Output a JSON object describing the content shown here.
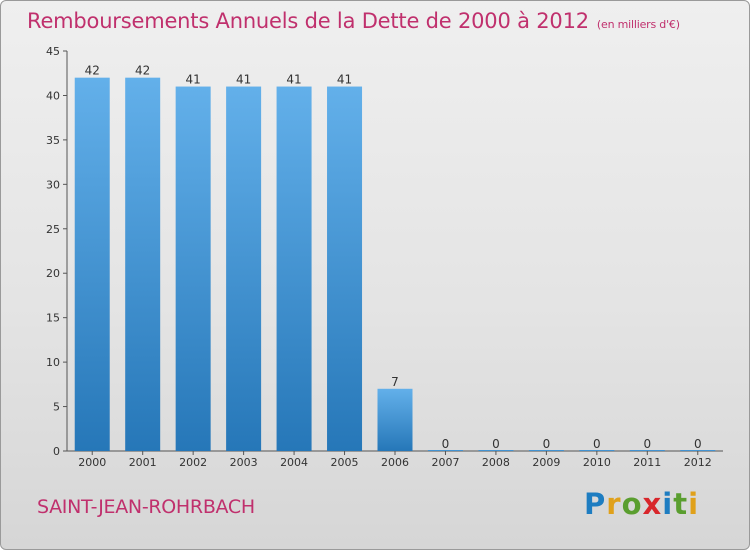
{
  "page": {
    "title": "Remboursements Annuels de la Dette de 2000 à 2012",
    "unit": "(en milliers d'€)",
    "commune": "SAINT-JEAN-ROHRBACH",
    "logo_letters": [
      {
        "ch": "P",
        "color": "#1e7dc1"
      },
      {
        "ch": "r",
        "color": "#e0a11b"
      },
      {
        "ch": "o",
        "color": "#5a9e2f"
      },
      {
        "ch": "x",
        "color": "#d8262b"
      },
      {
        "ch": "i",
        "color": "#1e7dc1"
      },
      {
        "ch": "t",
        "color": "#5a9e2f"
      },
      {
        "ch": "i",
        "color": "#e0a11b"
      }
    ]
  },
  "colors": {
    "accent": "#c0306d",
    "bar_top": "#63b0ea",
    "bar_bottom": "#2677b8"
  },
  "chart_data": {
    "type": "bar",
    "title": "Remboursements Annuels de la Dette de 2000 à 2012",
    "subtitle": "(en milliers d'€)",
    "categories": [
      "2000",
      "2001",
      "2002",
      "2003",
      "2004",
      "2005",
      "2006",
      "2007",
      "2008",
      "2009",
      "2010",
      "2011",
      "2012"
    ],
    "values": [
      42,
      42,
      41,
      41,
      41,
      41,
      7,
      0,
      0,
      0,
      0,
      0,
      0
    ],
    "ylim": [
      0,
      45
    ],
    "yticks": [
      0,
      5,
      10,
      15,
      20,
      25,
      30,
      35,
      40,
      45
    ],
    "grid": false,
    "legend": "none"
  }
}
